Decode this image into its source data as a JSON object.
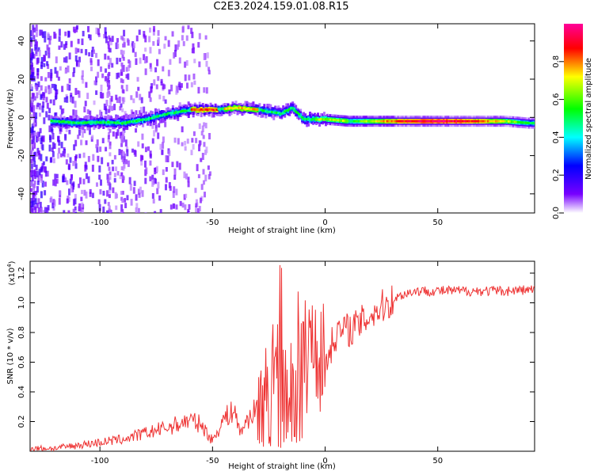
{
  "figure": {
    "title": "C2E3.2024.159.01.08.R15"
  },
  "chart_data": [
    {
      "type": "heatmap",
      "title": "C2E3.2024.159.01.08.R15",
      "xlabel": "Height of straight line (km)",
      "ylabel": "Frequency (Hz)",
      "xlim": [
        -131,
        93
      ],
      "ylim": [
        -50,
        49
      ],
      "xticks": [
        -100,
        -50,
        0,
        50
      ],
      "yticks": [
        -40,
        -20,
        0,
        20,
        40
      ],
      "colorbar": {
        "label": "Normalized spectral amplitude",
        "range": [
          0,
          1
        ],
        "ticks": [
          "0.0",
          "0.2",
          "0.4",
          "0.6",
          "0.8"
        ],
        "colormap": [
          "#ffffff",
          "#7700ff",
          "#0000ff",
          "#00ffff",
          "#00ff00",
          "#ffff00",
          "#ff0000",
          "#ff0099"
        ]
      },
      "ridge": {
        "description_points_x": [
          -120,
          -110,
          -100,
          -90,
          -80,
          -70,
          -60,
          -55,
          -50,
          -40,
          -30,
          -20,
          -15,
          -10,
          0,
          10,
          30,
          50,
          70,
          80,
          90
        ],
        "frequency_hz": [
          -2,
          -3,
          -2.5,
          -3,
          -1,
          2,
          4,
          4,
          4,
          5,
          4,
          2,
          5,
          -1,
          -1,
          -2,
          -2,
          -2,
          -2,
          -2,
          -3
        ]
      }
    },
    {
      "type": "line",
      "xlabel": "Height of straight line (km)",
      "ylabel": "SNR (10 * v/v)",
      "yscale_label": "(x10",
      "yscale_exp": "4",
      "xlim": [
        -131,
        93
      ],
      "ylim": [
        0,
        1.28
      ],
      "xticks": [
        -100,
        -50,
        0,
        50
      ],
      "yticks": [
        0.2,
        0.4,
        0.6,
        0.8,
        1.0,
        1.2
      ],
      "series": [
        {
          "name": "SNR",
          "color": "#ee3333",
          "x": [
            -131,
            -120,
            -110,
            -100,
            -90,
            -80,
            -70,
            -60,
            -55,
            -50,
            -45,
            -40,
            -38,
            -35,
            -30,
            -25,
            -22,
            -20,
            -18,
            -15,
            -12,
            -10,
            -5,
            0,
            5,
            10,
            15,
            20,
            25,
            30,
            35,
            40,
            50,
            60,
            70,
            80,
            93
          ],
          "y": [
            0.02,
            0.02,
            0.04,
            0.06,
            0.08,
            0.12,
            0.16,
            0.21,
            0.18,
            0.07,
            0.22,
            0.28,
            0.12,
            0.2,
            0.3,
            0.4,
            0.6,
            0.7,
            0.35,
            0.55,
            0.7,
            0.6,
            0.75,
            0.6,
            0.8,
            0.82,
            0.85,
            0.92,
            0.97,
            1.02,
            1.06,
            1.08,
            1.08,
            1.08,
            1.08,
            1.08,
            1.09
          ]
        }
      ]
    }
  ]
}
